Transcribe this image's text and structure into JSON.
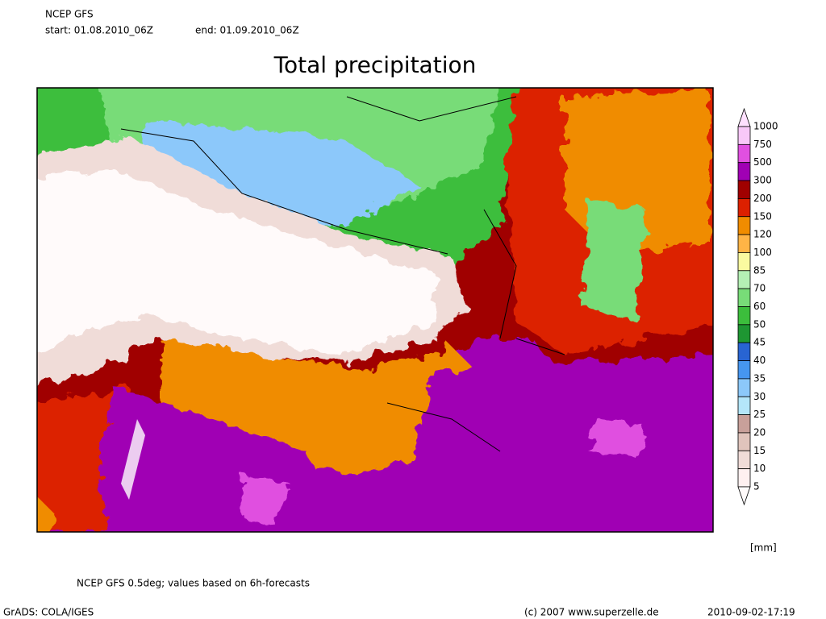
{
  "header": {
    "model": "NCEP GFS",
    "start": "start: 01.08.2010_06Z",
    "end": "end: 01.09.2010_06Z"
  },
  "title": "Total precipitation",
  "colorbar": {
    "levels": [
      1000,
      750,
      500,
      300,
      200,
      150,
      120,
      100,
      85,
      70,
      60,
      50,
      45,
      40,
      35,
      30,
      25,
      20,
      15,
      10,
      5
    ],
    "colors": [
      "#ffe0ff",
      "#f8c8f8",
      "#e050e0",
      "#a000b4",
      "#a00000",
      "#dc2000",
      "#f08c00",
      "#ffb446",
      "#fafaa0",
      "#b4f0b4",
      "#78dc78",
      "#3cbe3c",
      "#1e9632",
      "#2864d2",
      "#4696f0",
      "#8cc8fa",
      "#b4e6fa",
      "#c8a09a",
      "#e0c4bc",
      "#f0dcd8",
      "#fff0f0",
      "#fffafa"
    ],
    "unit": "[mm]"
  },
  "footer": {
    "note": "NCEP GFS 0.5deg; values based on 6h-forecasts",
    "software": "GrADS: COLA/IGES",
    "copyright": "(c) 2007 www.superzelle.de",
    "timestamp": "2010-09-02-17:19"
  }
}
